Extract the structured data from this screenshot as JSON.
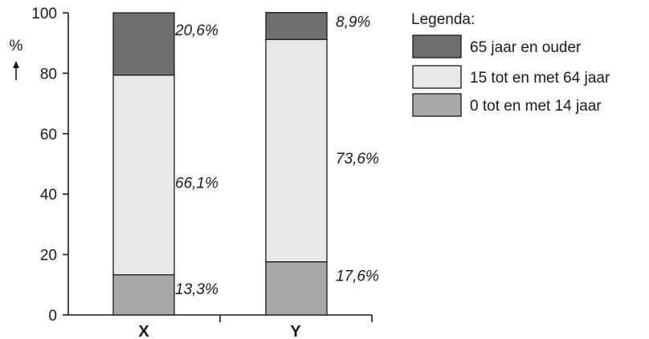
{
  "chart_data": {
    "type": "bar",
    "stacked": true,
    "categories": [
      "X",
      "Y"
    ],
    "series": [
      {
        "name": "0 tot en met 14 jaar",
        "values": [
          13.3,
          17.6
        ],
        "labels": [
          "13,3%",
          "17,6%"
        ],
        "color": "#a8a8a8"
      },
      {
        "name": "15 tot en met 64 jaar",
        "values": [
          66.1,
          73.6
        ],
        "labels": [
          "66,1%",
          "73,6%"
        ],
        "color": "#e8e8e8"
      },
      {
        "name": "65 jaar en ouder",
        "values": [
          20.6,
          8.9
        ],
        "labels": [
          "20,6%",
          "8,9%"
        ],
        "color": "#707070"
      }
    ],
    "ylabel": "%",
    "ylim": [
      0,
      100
    ],
    "yticks": [
      0,
      20,
      40,
      60,
      80,
      100
    ],
    "grid": false,
    "legend": {
      "title": "Legenda:",
      "placement": "top-right",
      "items": [
        "65 jaar en ouder",
        "15 tot en met 64 jaar",
        "0 tot en met 14 jaar"
      ]
    }
  }
}
